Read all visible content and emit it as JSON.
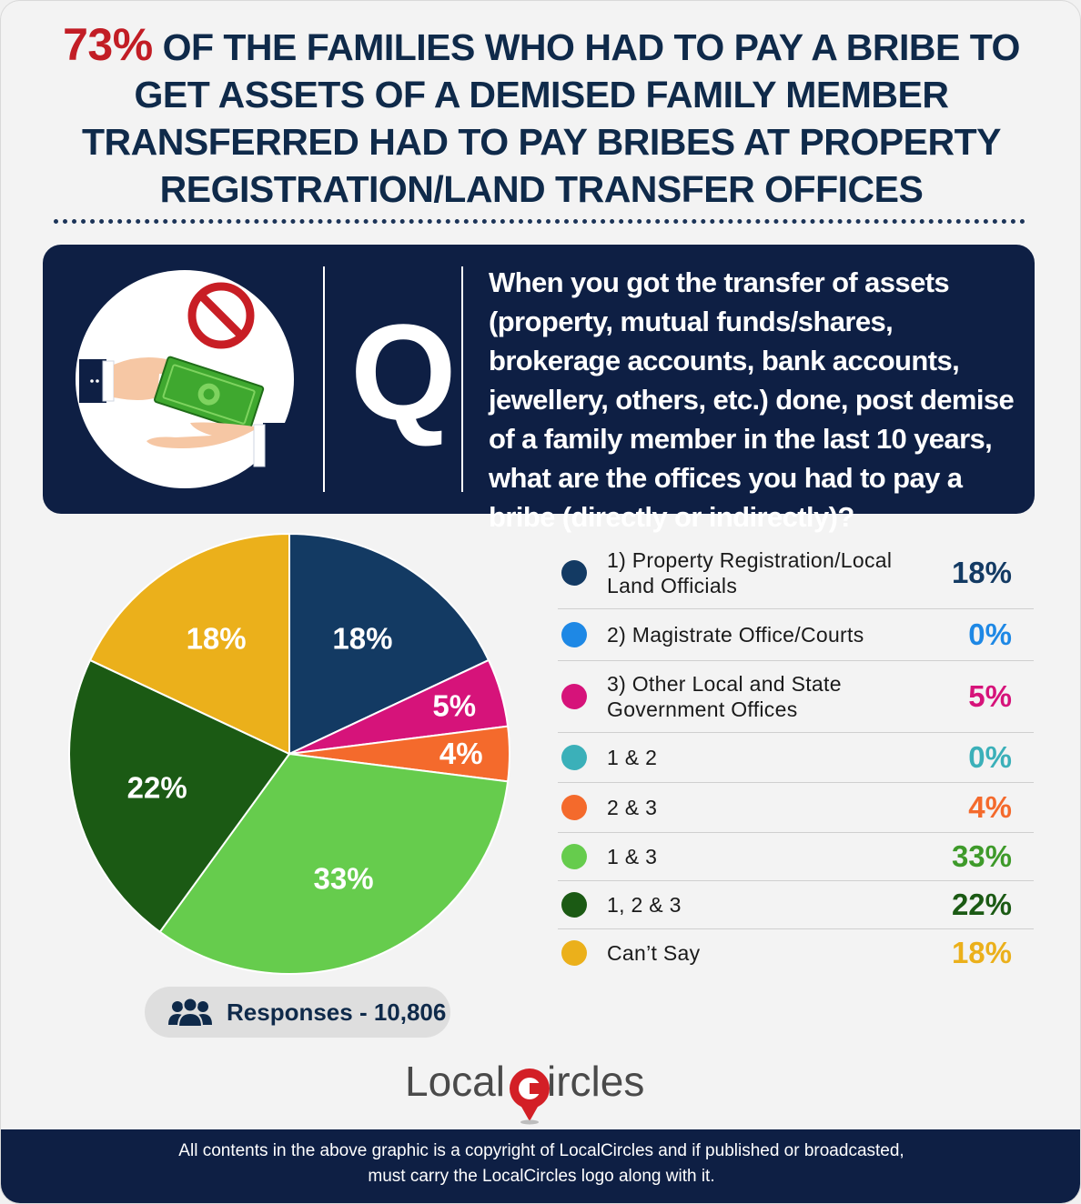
{
  "title": {
    "highlight": "73%",
    "text": " OF THE FAMILIES WHO HAD TO PAY A BRIBE TO GET ASSETS OF A DEMISED FAMILY MEMBER TRANSFERRED HAD TO PAY BRIBES AT PROPERTY REGISTRATION/LAND TRANSFER OFFICES"
  },
  "question": {
    "letter": "Q",
    "text": "When you got the transfer of assets (property, mutual funds/shares, brokerage accounts, bank accounts, jewellery, others, etc.) done, post demise of a family member in the last 10 years, what are the offices you had to pay a bribe (directly or indirectly)?",
    "icon": "bribe-hands-no-symbol-icon"
  },
  "chart_data": {
    "type": "pie",
    "categories": [
      "1) Property Registration/Local Land Officials",
      "2) Magistrate Office/Courts",
      "3) Other Local and State Government Offices",
      "1 & 2",
      "2 & 3",
      "1 & 3",
      "1, 2 & 3",
      "Can’t Say"
    ],
    "values": [
      18,
      0,
      5,
      0,
      4,
      33,
      22,
      18
    ],
    "labels": [
      "18%",
      "0%",
      "5%",
      "0%",
      "4%",
      "33%",
      "22%",
      "18%"
    ],
    "colors": [
      "#133a63",
      "#1e88e5",
      "#d6137a",
      "#3bb0b9",
      "#f46a2c",
      "#66cc4d",
      "#1b5a14",
      "#ebb01b"
    ],
    "pct_colors": [
      "#133a63",
      "#1e88e5",
      "#d6137a",
      "#3bb0b9",
      "#f46a2c",
      "#3e9a2a",
      "#1b5a14",
      "#ebb01b"
    ],
    "legend_position": "right"
  },
  "responses": {
    "label": "Responses - 10,806",
    "icon": "people-group-icon"
  },
  "logo": {
    "part1": "Local",
    "part2": "ircles",
    "icon": "location-pin-c-icon"
  },
  "footer": {
    "line1": "All contents in the above graphic is a copyright of LocalCircles and if published or broadcasted,",
    "line2": "must carry the LocalCircles logo along with it."
  }
}
